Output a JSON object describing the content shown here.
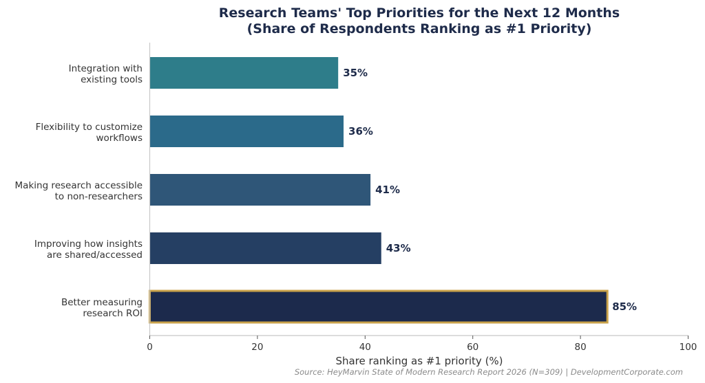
{
  "chart_data": {
    "type": "bar",
    "orientation": "horizontal",
    "title_lines": [
      "Research Teams' Top Priorities for the Next 12 Months",
      "(Share of Respondents Ranking as #1 Priority)"
    ],
    "categories": [
      [
        "Integration with",
        "existing tools"
      ],
      [
        "Flexibility to customize",
        "workflows"
      ],
      [
        "Making research accessible",
        "to non-researchers"
      ],
      [
        "Improving how insights",
        "are shared/accessed"
      ],
      [
        "Better measuring",
        "research ROI"
      ]
    ],
    "values": [
      35,
      36,
      41,
      43,
      85
    ],
    "value_labels": [
      "35%",
      "36%",
      "41%",
      "43%",
      "85%"
    ],
    "colors": [
      "#2e7d8a",
      "#2b6a8a",
      "#2f5678",
      "#253f63",
      "#1c2a4c"
    ],
    "highlight": {
      "index": 4,
      "border_color": "#c9a24a"
    },
    "xlabel": "Share ranking as #1 priority (%)",
    "xlim": [
      0,
      100
    ],
    "xticks": [
      0,
      20,
      40,
      60,
      80,
      100
    ],
    "xtick_labels": [
      "0",
      "20",
      "40",
      "60",
      "80",
      "100"
    ],
    "grid": false,
    "source": "Source: HeyMarvin State of Modern Research Report 2026 (N=309) | DevelopmentCorporate.com"
  }
}
